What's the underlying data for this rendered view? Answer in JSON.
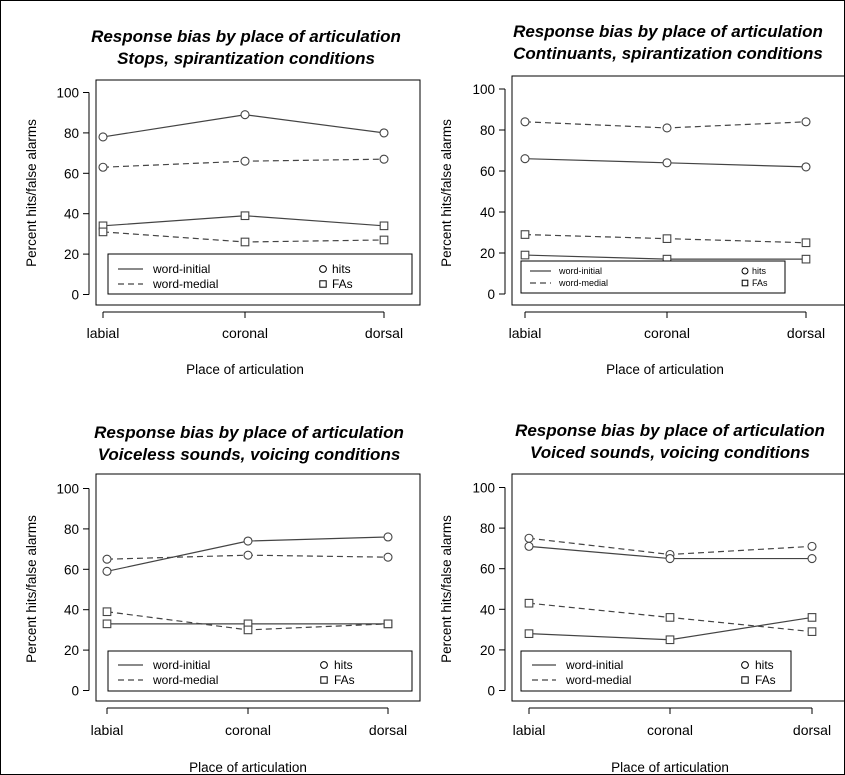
{
  "figure": {
    "border_color": "#000000",
    "line_color": "#444444"
  },
  "chart_data": [
    {
      "type": "line",
      "title": [
        "Response bias by place of articulation",
        "Stops, spirantization conditions"
      ],
      "xlabel": "Place of articulation",
      "ylabel": "Percent hits/false alarms",
      "categories": [
        "labial",
        "coronal",
        "dorsal"
      ],
      "ylim": [
        0,
        100
      ],
      "yticks": [
        0,
        20,
        40,
        60,
        80,
        100
      ],
      "grid": false,
      "legend": {
        "lines": [
          "word-initial",
          "word-medial"
        ],
        "markers": [
          "hits",
          "FAs"
        ]
      },
      "series": [
        {
          "name": "word-initial hits",
          "line": "solid",
          "marker": "circle",
          "values": [
            78,
            89,
            80
          ]
        },
        {
          "name": "word-medial hits",
          "line": "dashed",
          "marker": "circle",
          "values": [
            63,
            66,
            67
          ]
        },
        {
          "name": "word-initial FAs",
          "line": "solid",
          "marker": "square",
          "values": [
            34,
            39,
            34
          ]
        },
        {
          "name": "word-medial FAs",
          "line": "dashed",
          "marker": "square",
          "values": [
            31,
            26,
            27
          ]
        }
      ]
    },
    {
      "type": "line",
      "title": [
        "Response bias by place of articulation",
        "Continuants, spirantization conditions"
      ],
      "xlabel": "Place of articulation",
      "ylabel": "Percent hits/false alarms",
      "categories": [
        "labial",
        "coronal",
        "dorsal"
      ],
      "ylim": [
        0,
        100
      ],
      "yticks": [
        0,
        20,
        40,
        60,
        80,
        100
      ],
      "grid": false,
      "legend": {
        "lines": [
          "word-initial",
          "word-medial"
        ],
        "markers": [
          "hits",
          "FAs"
        ]
      },
      "series": [
        {
          "name": "word-medial hits",
          "line": "dashed",
          "marker": "circle",
          "values": [
            84,
            81,
            84
          ]
        },
        {
          "name": "word-initial hits",
          "line": "solid",
          "marker": "circle",
          "values": [
            66,
            64,
            62
          ]
        },
        {
          "name": "word-medial FAs",
          "line": "dashed",
          "marker": "square",
          "values": [
            29,
            27,
            25
          ]
        },
        {
          "name": "word-initial FAs",
          "line": "solid",
          "marker": "square",
          "values": [
            19,
            17,
            17
          ]
        }
      ]
    },
    {
      "type": "line",
      "title": [
        "Response bias by place of articulation",
        "Voiceless sounds, voicing conditions"
      ],
      "xlabel": "Place of articulation",
      "ylabel": "Percent hits/false alarms",
      "categories": [
        "labial",
        "coronal",
        "dorsal"
      ],
      "ylim": [
        0,
        100
      ],
      "yticks": [
        0,
        20,
        40,
        60,
        80,
        100
      ],
      "grid": false,
      "legend": {
        "lines": [
          "word-initial",
          "word-medial"
        ],
        "markers": [
          "hits",
          "FAs"
        ]
      },
      "series": [
        {
          "name": "word-initial hits",
          "line": "solid",
          "marker": "circle",
          "values": [
            59,
            74,
            76
          ]
        },
        {
          "name": "word-medial hits",
          "line": "dashed",
          "marker": "circle",
          "values": [
            65,
            67,
            66
          ]
        },
        {
          "name": "word-initial FAs",
          "line": "solid",
          "marker": "square",
          "values": [
            33,
            33,
            33
          ]
        },
        {
          "name": "word-medial FAs",
          "line": "dashed",
          "marker": "square",
          "values": [
            39,
            30,
            33
          ]
        }
      ]
    },
    {
      "type": "line",
      "title": [
        "Response bias by place of articulation",
        "Voiced sounds, voicing conditions"
      ],
      "xlabel": "Place of articulation",
      "ylabel": "Percent hits/false alarms",
      "categories": [
        "labial",
        "coronal",
        "dorsal"
      ],
      "ylim": [
        0,
        100
      ],
      "yticks": [
        0,
        20,
        40,
        60,
        80,
        100
      ],
      "grid": false,
      "legend": {
        "lines": [
          "word-initial",
          "word-medial"
        ],
        "markers": [
          "hits",
          "FAs"
        ]
      },
      "series": [
        {
          "name": "word-medial hits",
          "line": "dashed",
          "marker": "circle",
          "values": [
            75,
            67,
            71
          ]
        },
        {
          "name": "word-initial hits",
          "line": "solid",
          "marker": "circle",
          "values": [
            71,
            65,
            65
          ]
        },
        {
          "name": "word-medial FAs",
          "line": "dashed",
          "marker": "square",
          "values": [
            43,
            36,
            29
          ]
        },
        {
          "name": "word-initial FAs",
          "line": "solid",
          "marker": "square",
          "values": [
            28,
            25,
            36
          ]
        }
      ]
    }
  ]
}
